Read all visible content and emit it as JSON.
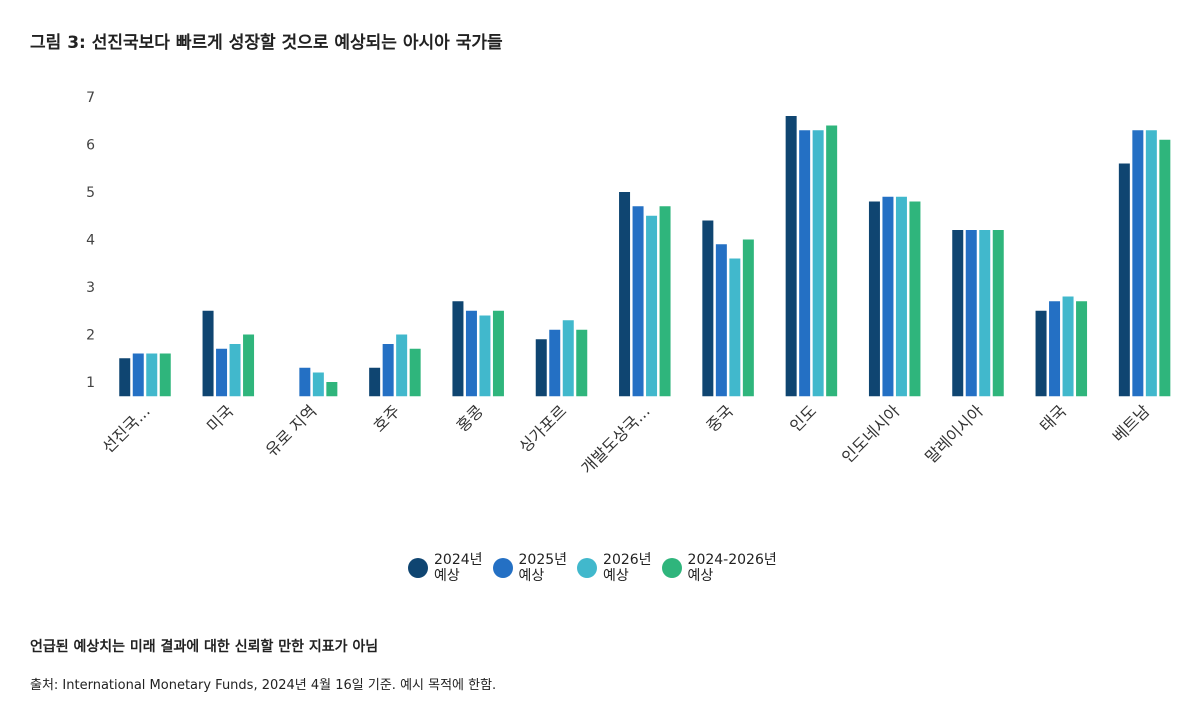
{
  "title": "그림 3: 선진국보다 빠르게 성장할 것으로 예상되는 아시아 국가들",
  "note": "언급된 예상치는 미래 결과에 대한 신뢰할 만한 지표가 아님",
  "source": "출처: International Monetary Funds, 2024년 4월 16일 기준. 예시 목적에 한함.",
  "chart_data": {
    "type": "bar",
    "title": "그림 3: 선진국보다 빠르게 성장할 것으로 예상되는 아시아 국가들",
    "xlabel": "",
    "ylabel": "",
    "ylim": [
      0.7,
      7
    ],
    "yticks": [
      1,
      2,
      3,
      4,
      5,
      6,
      7
    ],
    "grid": false,
    "legend_position": "bottom-center",
    "categories": [
      "선진국...",
      "미국",
      "유로 지역",
      "호주",
      "홍콩",
      "싱가포르",
      "개발도상국...",
      "중국",
      "인도",
      "인도네시아",
      "말레이시아",
      "태국",
      "베트남"
    ],
    "series": [
      {
        "name": "2024년 예상",
        "line1": "2024년",
        "line2": "예상",
        "color": "#0f4571",
        "values": [
          1.5,
          2.5,
          null,
          1.3,
          2.7,
          1.9,
          5.0,
          4.4,
          6.6,
          4.8,
          4.2,
          2.5,
          5.6
        ]
      },
      {
        "name": "2025년 예상",
        "line1": "2025년",
        "line2": "예상",
        "color": "#2470c4",
        "values": [
          1.6,
          1.7,
          1.3,
          1.8,
          2.5,
          2.1,
          4.7,
          3.9,
          6.3,
          4.9,
          4.2,
          2.7,
          6.3
        ]
      },
      {
        "name": "2026년 예상",
        "line1": "2026년",
        "line2": "예상",
        "color": "#41b8cc",
        "values": [
          1.6,
          1.8,
          1.2,
          2.0,
          2.4,
          2.3,
          4.5,
          3.6,
          6.3,
          4.9,
          4.2,
          2.8,
          6.3
        ]
      },
      {
        "name": "2024-2026년 예상",
        "line1": "2024-2026년",
        "line2": "예상",
        "color": "#2fb57c",
        "values": [
          1.6,
          2.0,
          1.0,
          1.7,
          2.5,
          2.1,
          4.7,
          4.0,
          6.4,
          4.8,
          4.2,
          2.7,
          6.1
        ]
      }
    ]
  }
}
